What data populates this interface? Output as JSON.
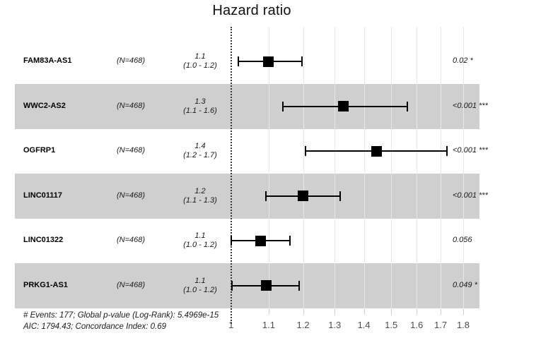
{
  "chart_data": {
    "type": "forest",
    "title": "Hazard ratio",
    "x_scale": "log",
    "x_ticks": [
      1,
      1.1,
      1.2,
      1.3,
      1.4,
      1.5,
      1.6,
      1.7,
      1.8
    ],
    "x_tick_labels": [
      "1",
      "1.1",
      "1.2",
      "1.3",
      "1.4",
      "1.5",
      "1.6",
      "1.7",
      "1.8"
    ],
    "reference_line": 1,
    "grid": true,
    "rows": [
      {
        "label": "FAM83A-AS1",
        "n": "(N=468)",
        "estimate_label": "1.1",
        "ci_label": "(1.0 - 1.2)",
        "est": 1.1,
        "low": 1.018,
        "high": 1.196,
        "p": "0.02",
        "stars": "*",
        "shaded": false
      },
      {
        "label": "WWC2-AS2",
        "n": "(N=468)",
        "estimate_label": "1.3",
        "ci_label": "(1.1 - 1.6)",
        "est": 1.33,
        "low": 1.14,
        "high": 1.563,
        "p": "<0.001",
        "stars": "***",
        "shaded": true
      },
      {
        "label": "OGFRP1",
        "n": "(N=468)",
        "estimate_label": "1.4",
        "ci_label": "(1.2 - 1.7)",
        "est": 1.445,
        "low": 1.207,
        "high": 1.727,
        "p": "<0.001",
        "stars": "***",
        "shaded": false
      },
      {
        "label": "LINC01117",
        "n": "(N=468)",
        "estimate_label": "1.2",
        "ci_label": "(1.1 - 1.3)",
        "est": 1.199,
        "low": 1.092,
        "high": 1.318,
        "p": "<0.001",
        "stars": "***",
        "shaded": true
      },
      {
        "label": "LINC01322",
        "n": "(N=468)",
        "estimate_label": "1.1",
        "ci_label": "(1.0 - 1.2)",
        "est": 1.077,
        "low": 1.0,
        "high": 1.161,
        "p": "0.056",
        "stars": "",
        "shaded": false
      },
      {
        "label": "PRKG1-AS1",
        "n": "(N=468)",
        "estimate_label": "1.1",
        "ci_label": "(1.0 - 1.2)",
        "est": 1.094,
        "low": 1.003,
        "high": 1.189,
        "p": "0.049",
        "stars": "*",
        "shaded": true
      }
    ],
    "footer_lines": [
      "# Events: 177; Global p-value (Log-Rank): 5.4969e-15",
      "AIC: 1794.43; Concordance Index: 0.69"
    ],
    "colors": {
      "band": "#cfcfcf",
      "gridline": "#e7e7e7",
      "tick_mark": "#cccccc",
      "marker": "#000000",
      "reference": "#3a3a3a",
      "axis_text": "#4d4d4d"
    }
  }
}
